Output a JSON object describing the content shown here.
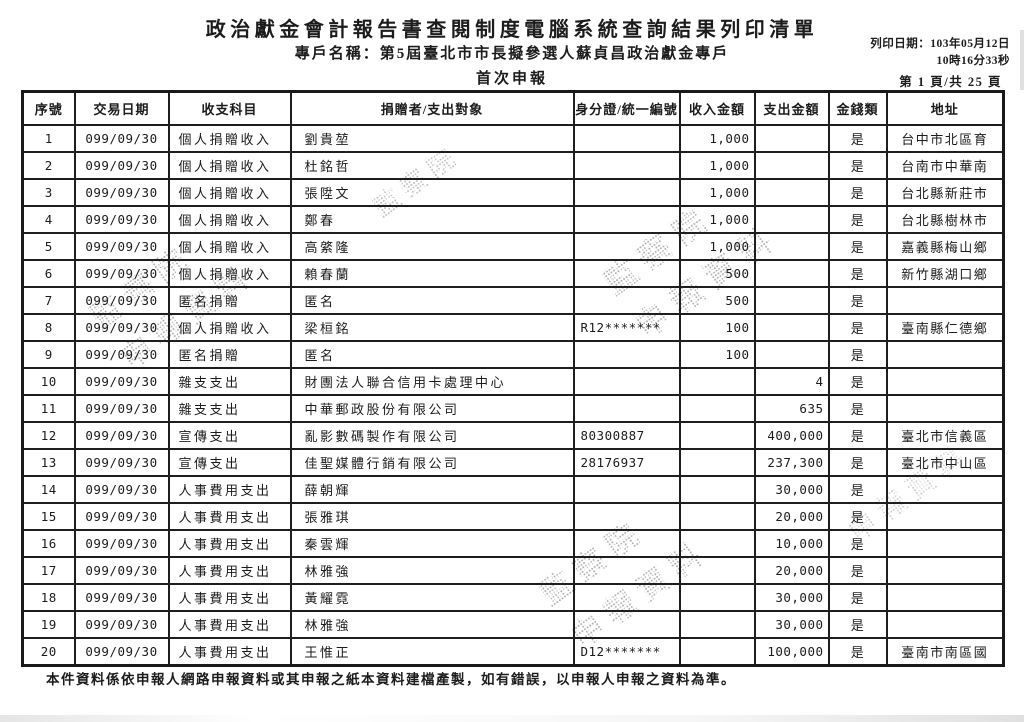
{
  "header": {
    "title": "政治獻金會計報告書查閱制度電腦系統查詢結果列印清單",
    "account_name": "專戶名稱：第5屆臺北市市長擬參選人蘇貞昌政治獻金專戶",
    "report_type": "首次申報",
    "print_date": "列印日期：103年05月12日",
    "print_time": "10時16分33秒",
    "page_info": "第 1 頁/共 25 頁"
  },
  "table": {
    "columns": [
      "序號",
      "交易日期",
      "收支科目",
      "捐贈者/支出對象",
      "身分證/統一編號",
      "收入金額",
      "支出金額",
      "金錢類",
      "地址"
    ],
    "rows": [
      [
        "1",
        "099/09/30",
        "個人捐贈收入",
        "劉貴堃",
        "",
        "1,000",
        "",
        "是",
        "台中市北區育"
      ],
      [
        "2",
        "099/09/30",
        "個人捐贈收入",
        "杜銘哲",
        "",
        "1,000",
        "",
        "是",
        "台南市中華南"
      ],
      [
        "3",
        "099/09/30",
        "個人捐贈收入",
        "張陞文",
        "",
        "1,000",
        "",
        "是",
        "台北縣新莊市"
      ],
      [
        "4",
        "099/09/30",
        "個人捐贈收入",
        "鄭春",
        "",
        "1,000",
        "",
        "是",
        "台北縣樹林市"
      ],
      [
        "5",
        "099/09/30",
        "個人捐贈收入",
        "高綮隆",
        "",
        "1,000",
        "",
        "是",
        "嘉義縣梅山鄉"
      ],
      [
        "6",
        "099/09/30",
        "個人捐贈收入",
        "賴春蘭",
        "",
        "500",
        "",
        "是",
        "新竹縣湖口鄉"
      ],
      [
        "7",
        "099/09/30",
        "匿名捐贈",
        "匿名",
        "",
        "500",
        "",
        "是",
        ""
      ],
      [
        "8",
        "099/09/30",
        "個人捐贈收入",
        "梁桓銘",
        "R12*******",
        "100",
        "",
        "是",
        "臺南縣仁德鄉"
      ],
      [
        "9",
        "099/09/30",
        "匿名捐贈",
        "匿名",
        "",
        "100",
        "",
        "是",
        ""
      ],
      [
        "10",
        "099/09/30",
        "雜支支出",
        "財團法人聯合信用卡處理中心",
        "",
        "",
        "4",
        "是",
        ""
      ],
      [
        "11",
        "099/09/30",
        "雜支支出",
        "中華郵政股份有限公司",
        "",
        "",
        "635",
        "是",
        ""
      ],
      [
        "12",
        "099/09/30",
        "宣傳支出",
        "亂影數碼製作有限公司",
        "80300887",
        "",
        "400,000",
        "是",
        "臺北市信義區"
      ],
      [
        "13",
        "099/09/30",
        "宣傳支出",
        "佳聖媒體行銷有限公司",
        "28176937",
        "",
        "237,300",
        "是",
        "臺北市中山區"
      ],
      [
        "14",
        "099/09/30",
        "人事費用支出",
        "薛朝輝",
        "",
        "",
        "30,000",
        "是",
        ""
      ],
      [
        "15",
        "099/09/30",
        "人事費用支出",
        "張雅琪",
        "",
        "",
        "20,000",
        "是",
        ""
      ],
      [
        "16",
        "099/09/30",
        "人事費用支出",
        "秦雲輝",
        "",
        "",
        "10,000",
        "是",
        ""
      ],
      [
        "17",
        "099/09/30",
        "人事費用支出",
        "林雅強",
        "",
        "",
        "20,000",
        "是",
        ""
      ],
      [
        "18",
        "099/09/30",
        "人事費用支出",
        "黃耀霓",
        "",
        "",
        "30,000",
        "是",
        ""
      ],
      [
        "19",
        "099/09/30",
        "人事費用支出",
        "林雅強",
        "",
        "",
        "30,000",
        "是",
        ""
      ],
      [
        "20",
        "099/09/30",
        "人事費用支出",
        "王惟正",
        "D12*******",
        "",
        "100,000",
        "是",
        "臺南市南區國"
      ]
    ],
    "cell_names": [
      "row-no",
      "transaction-date",
      "category",
      "party-name",
      "id-number",
      "income-amount",
      "expense-amount",
      "cash-type",
      "address"
    ]
  },
  "footer": {
    "note": "本件資料係依申報人網路申報資料或其申報之紙本資料建檔產製，如有錯誤，以申報人申報之資料為準。"
  },
  "watermark": {
    "fragments": [
      "監察院\n申報資料",
      "監察院",
      "監察院\n申報資料",
      "監察院\n申報資料",
      "申報資料"
    ]
  },
  "colors": {
    "ink": "#1c1c1c",
    "paper": "#ffffff",
    "watermark": "#6f6f6f"
  }
}
